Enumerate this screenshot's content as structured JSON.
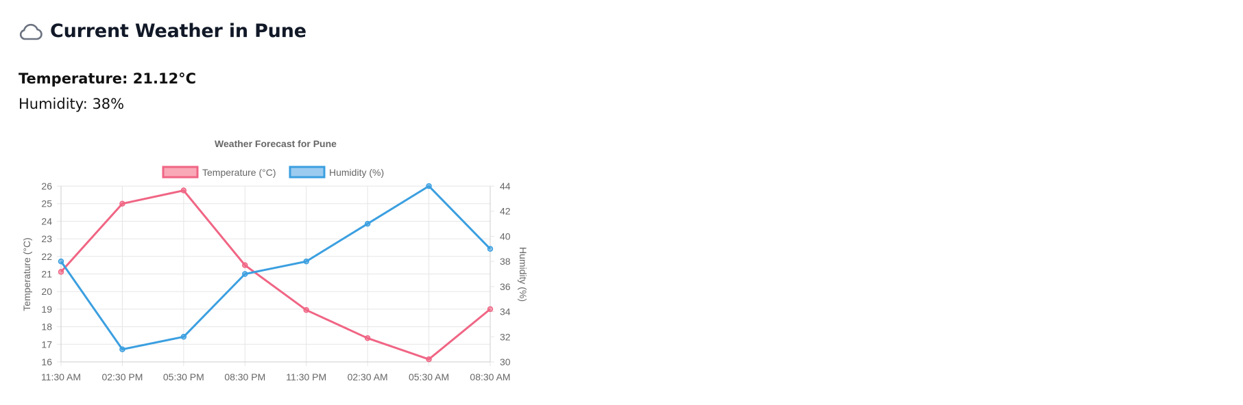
{
  "weather": {
    "title": "Current Weather in Pune",
    "icon": "cloud-icon",
    "temperature_text": "Temperature: 21.12°C",
    "humidity_text": "Humidity: 38%"
  },
  "chart_data": {
    "type": "line",
    "title": "Weather Forecast for Pune",
    "categories": [
      "11:30 AM",
      "02:30 PM",
      "05:30 PM",
      "08:30 PM",
      "11:30 PM",
      "02:30 AM",
      "05:30 AM",
      "08:30 AM"
    ],
    "series": [
      {
        "name": "Temperature (°C)",
        "axis": "left",
        "color": "#f06584",
        "values": [
          21.12,
          25.0,
          25.75,
          21.5,
          18.95,
          17.35,
          16.15,
          19.0
        ]
      },
      {
        "name": "Humidity (%)",
        "axis": "right",
        "color": "#3b9fe0",
        "values": [
          38,
          31,
          32,
          37,
          38,
          41,
          44,
          39
        ]
      }
    ],
    "ylabel": "Temperature (°C)",
    "y2label": "Humidity (%)",
    "ylim": [
      16,
      26
    ],
    "y2lim": [
      30,
      44
    ],
    "yticks": [
      16,
      17,
      18,
      19,
      20,
      21,
      22,
      23,
      24,
      25,
      26
    ],
    "y2ticks": [
      30,
      32,
      34,
      36,
      38,
      40,
      42,
      44
    ],
    "grid": true,
    "legend": "top"
  }
}
